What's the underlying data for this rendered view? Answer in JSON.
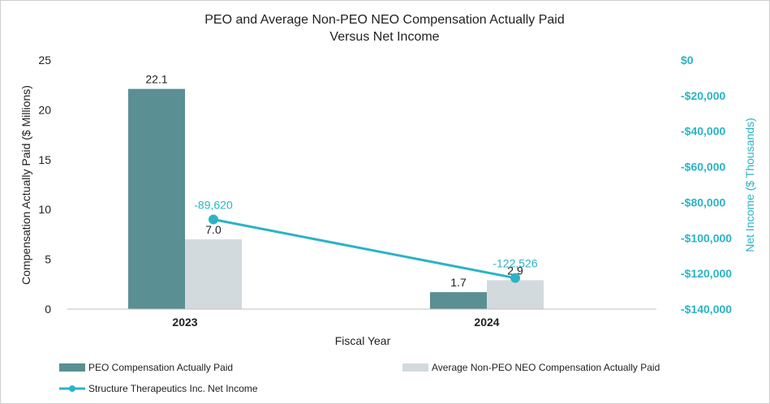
{
  "chart_data": {
    "type": "bar",
    "title_lines": [
      "PEO and Average Non-PEO NEO Compensation Actually Paid",
      "Versus Net Income"
    ],
    "categories": [
      "2023",
      "2024"
    ],
    "series": [
      {
        "name": "PEO Compensation Actually Paid",
        "axis": "left",
        "values": [
          22.1,
          1.7
        ],
        "labels": [
          "22.1",
          "1.7"
        ],
        "color": "#5a8f93"
      },
      {
        "name": "Average Non-PEO NEO Compensation Actually Paid",
        "axis": "left",
        "values": [
          7.0,
          2.9
        ],
        "labels": [
          "7.0",
          "2.9"
        ],
        "color": "#d3dadd"
      }
    ],
    "line_series": {
      "name": "Structure Therapeutics Inc. Net Income",
      "axis": "right",
      "values": [
        -89620,
        -122526
      ],
      "labels": [
        "-89,620",
        "-122,526"
      ],
      "color": "#2bb3c6"
    },
    "xlabel": "Fiscal Year",
    "ylabel": "Compensation Actually Paid ($ Millions)",
    "y2label": "Net Income ($ Thousands)",
    "ylim": [
      0,
      25
    ],
    "yticks": [
      0,
      5,
      10,
      15,
      20,
      25
    ],
    "y2lim": [
      -140000,
      0
    ],
    "y2ticks": [
      0,
      -20000,
      -40000,
      -60000,
      -80000,
      -100000,
      -120000,
      -140000
    ],
    "y2tick_labels": [
      "$0",
      "-$20,000",
      "-$40,000",
      "-$60,000",
      "-$80,000",
      "-$100,000",
      "-$120,000",
      "-$140,000"
    ],
    "grid": false,
    "legend_position": "bottom"
  }
}
